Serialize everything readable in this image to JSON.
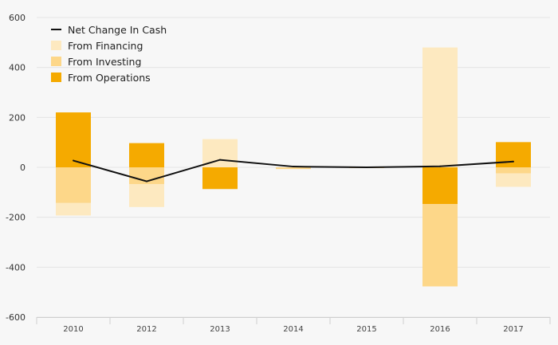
{
  "chart_data": {
    "type": "bar",
    "stacked": true,
    "categories": [
      "2010",
      "2012",
      "2013",
      "2014",
      "2015",
      "2016",
      "2017"
    ],
    "series": [
      {
        "name": "From Operations",
        "color": "#f5aa00",
        "values": [
          220,
          97,
          -87,
          0,
          0,
          -147,
          101
        ]
      },
      {
        "name": "From Investing",
        "color": "#fdd789",
        "values": [
          -143,
          -67,
          0,
          -7,
          -2,
          -330,
          -24
        ]
      },
      {
        "name": "From Financing",
        "color": "#fde9c0",
        "values": [
          -50,
          -92,
          113,
          0,
          0,
          480,
          -54
        ]
      }
    ],
    "line": {
      "name": "Net Change In Cash",
      "color": "#111111",
      "values": [
        27,
        -56,
        30,
        3,
        0,
        4,
        23
      ]
    },
    "y_ticks": [
      "600",
      "400",
      "200",
      "0",
      "-200",
      "-400",
      "-600"
    ],
    "ylim": [
      -600,
      600
    ],
    "legend_position": "top-left",
    "title": "",
    "xlabel": "",
    "ylabel": ""
  },
  "legend": {
    "net_change": "Net Change In Cash",
    "financing": "From Financing",
    "investing": "From Investing",
    "operations": "From Operations"
  }
}
